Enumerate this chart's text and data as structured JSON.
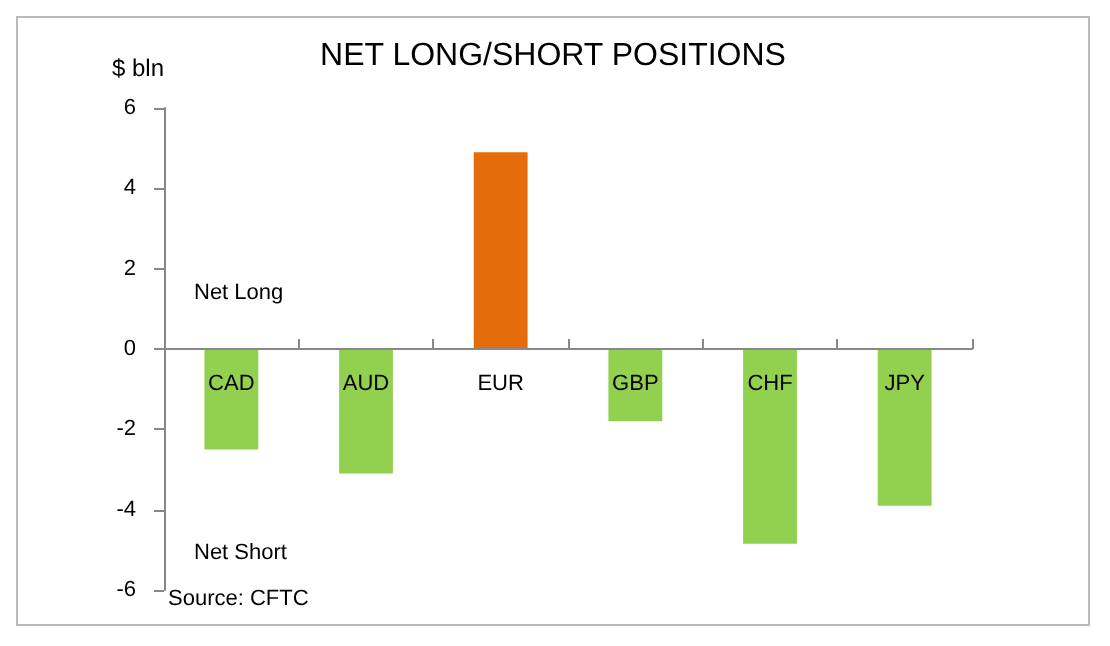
{
  "chart_data": {
    "type": "bar",
    "title": "NET LONG/SHORT POSITIONS",
    "ylabel": "$ bln",
    "categories": [
      "CAD",
      "AUD",
      "EUR",
      "GBP",
      "CHF",
      "JPY"
    ],
    "values": [
      -2.5,
      -3.1,
      4.9,
      -1.8,
      -4.85,
      -3.9
    ],
    "colors": [
      "#92d050",
      "#92d050",
      "#e46c0a",
      "#92d050",
      "#92d050",
      "#92d050"
    ],
    "ylim": [
      -6,
      6
    ],
    "yticks": [
      -6,
      -4,
      -2,
      0,
      2,
      4,
      6
    ],
    "annotations": [
      "Net Long",
      "Net Short",
      "Source: CFTC"
    ]
  }
}
